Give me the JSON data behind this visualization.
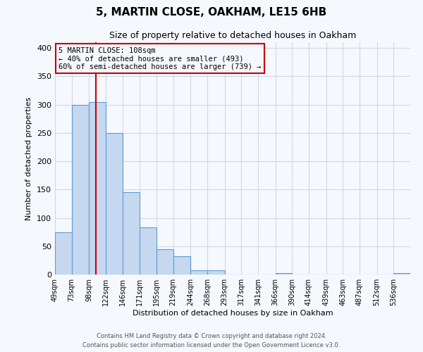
{
  "title": "5, MARTIN CLOSE, OAKHAM, LE15 6HB",
  "subtitle": "Size of property relative to detached houses in Oakham",
  "xlabel": "Distribution of detached houses by size in Oakham",
  "ylabel": "Number of detached properties",
  "bin_edges": [
    49,
    73,
    98,
    122,
    146,
    171,
    195,
    219,
    244,
    268,
    293,
    317,
    341,
    366,
    390,
    414,
    439,
    463,
    487,
    512,
    536,
    560
  ],
  "bin_labels": [
    "49sqm",
    "73sqm",
    "98sqm",
    "122sqm",
    "146sqm",
    "171sqm",
    "195sqm",
    "219sqm",
    "244sqm",
    "268sqm",
    "293sqm",
    "317sqm",
    "341sqm",
    "366sqm",
    "390sqm",
    "414sqm",
    "439sqm",
    "463sqm",
    "487sqm",
    "512sqm",
    "536sqm"
  ],
  "bar_heights": [
    75,
    300,
    305,
    250,
    145,
    83,
    45,
    32,
    8,
    7,
    0,
    0,
    0,
    2,
    0,
    0,
    0,
    0,
    0,
    0,
    2
  ],
  "bar_color": "#c5d8f0",
  "bar_edge_color": "#5b9bd5",
  "ylim": [
    0,
    410
  ],
  "yticks": [
    0,
    50,
    100,
    150,
    200,
    250,
    300,
    350,
    400
  ],
  "property_size": 108,
  "vline_color": "#cc0000",
  "annotation_title": "5 MARTIN CLOSE: 108sqm",
  "annotation_line1": "← 40% of detached houses are smaller (493)",
  "annotation_line2": "60% of semi-detached houses are larger (739) →",
  "annotation_box_color": "#cc0000",
  "grid_color": "#d0d8e8",
  "background_color": "#f5f8fd",
  "footer_line1": "Contains HM Land Registry data © Crown copyright and database right 2024.",
  "footer_line2": "Contains public sector information licensed under the Open Government Licence v3.0."
}
